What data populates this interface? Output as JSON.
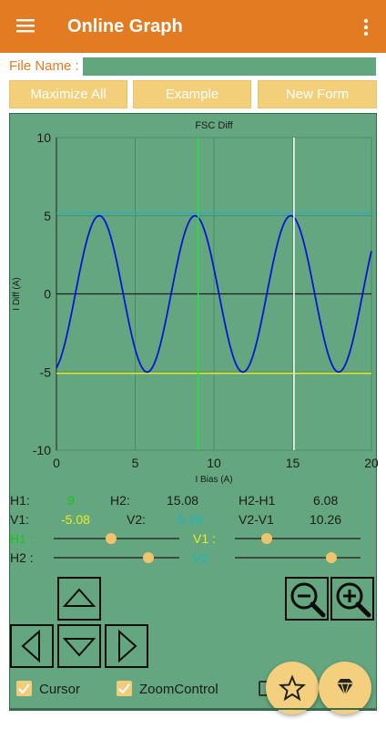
{
  "app": {
    "title": "Online Graph"
  },
  "file": {
    "label": "File Name :",
    "value": ""
  },
  "buttons": {
    "maximize": "Maximize All",
    "example": "Example",
    "new_form": "New Form"
  },
  "chart_data": {
    "type": "line",
    "title": "FSC Diff",
    "xlabel": "I Bias (A)",
    "ylabel": "I Diff (A)",
    "xlim": [
      0,
      20
    ],
    "ylim": [
      -10,
      10
    ],
    "xticks": [
      "0",
      "5",
      "10",
      "15",
      "20"
    ],
    "yticks": [
      "10",
      "5",
      "0",
      "-5",
      "-10"
    ],
    "series": [
      {
        "amplitude": 5,
        "period": 6.08,
        "peak_x": 2.72,
        "color": "#0a14d6"
      }
    ],
    "cursors": {
      "v1": {
        "x": 9,
        "color": "#21e43a"
      },
      "v2": {
        "x": 15.08,
        "color": "#ffffff"
      },
      "h1": {
        "y": -5.08,
        "color": "#ecec20"
      },
      "h2": {
        "y": 5.18,
        "color": "#22b0c8"
      }
    },
    "grid": true
  },
  "readout": {
    "h1_label": "H1:",
    "h1_value": "9",
    "h2_label": "H2:",
    "h2_value": "15.08",
    "h2h1_label": "H2-H1",
    "h2h1_value": "6.08",
    "v1_label": "V1:",
    "v1_value": "-5.08",
    "v2_label": "V2:",
    "v2_value": "5.18",
    "v2v1_label": "V2-V1",
    "v2v1_value": "10.26"
  },
  "sliders": {
    "h1_label": "H1 :",
    "v1_label": "V1 :",
    "h2_label": "H2 :",
    "v2_label": "V2",
    "h1_level": 0.46,
    "v1_level": 0.25,
    "h2_level": 0.75,
    "v2_level": 0.77
  },
  "checkboxes": {
    "cursor": "Cursor",
    "zoom": "ZoomControl"
  },
  "colors": {
    "appbar": "#e27b22",
    "panel": "#64a67f",
    "button": "#f4cf79"
  }
}
